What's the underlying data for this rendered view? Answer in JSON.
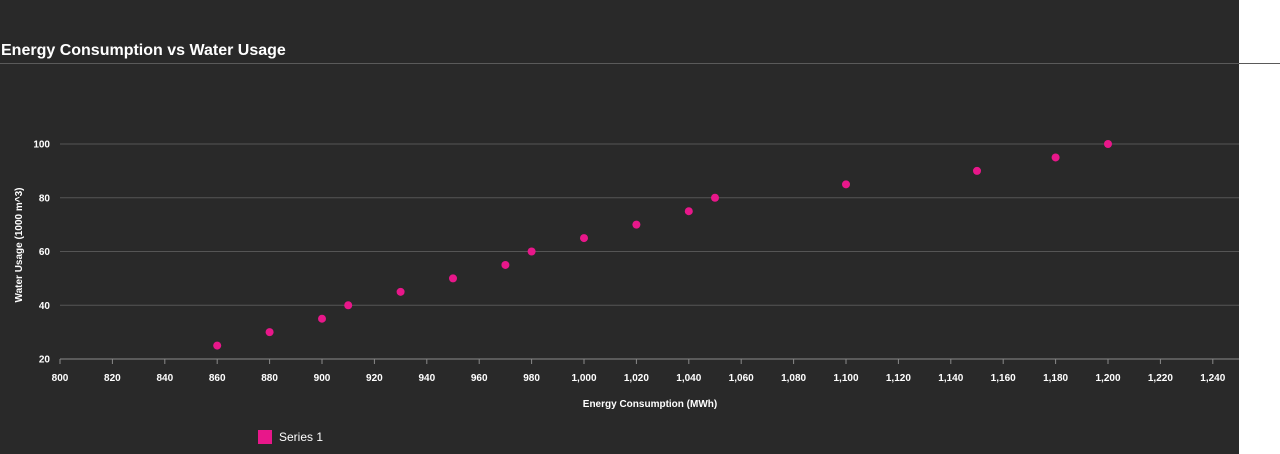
{
  "chart_data": {
    "type": "scatter",
    "title": "Energy Consumption vs Water Usage",
    "xlabel": "Energy Consumption (MWh)",
    "ylabel": "Water Usage (1000 m^3)",
    "xlim": [
      800,
      1250
    ],
    "ylim": [
      20,
      100
    ],
    "x_ticks": [
      800,
      820,
      840,
      860,
      880,
      900,
      920,
      940,
      960,
      980,
      1000,
      1020,
      1040,
      1060,
      1080,
      1100,
      1120,
      1140,
      1160,
      1180,
      1200,
      1220,
      1240
    ],
    "x_tick_labels": [
      "800",
      "820",
      "840",
      "860",
      "880",
      "900",
      "920",
      "940",
      "960",
      "980",
      "1,000",
      "1,020",
      "1,040",
      "1,060",
      "1,080",
      "1,100",
      "1,120",
      "1,140",
      "1,160",
      "1,180",
      "1,200",
      "1,220",
      "1,240"
    ],
    "y_ticks": [
      20,
      40,
      60,
      80,
      100
    ],
    "y_tick_labels": [
      "20",
      "40",
      "60",
      "80",
      "100"
    ],
    "grid": true,
    "legend_position": "bottom-left",
    "series": [
      {
        "name": "Series 1",
        "color": "#e8178a",
        "points": [
          {
            "x": 860,
            "y": 25
          },
          {
            "x": 880,
            "y": 30
          },
          {
            "x": 900,
            "y": 35
          },
          {
            "x": 910,
            "y": 40
          },
          {
            "x": 930,
            "y": 45
          },
          {
            "x": 950,
            "y": 50
          },
          {
            "x": 970,
            "y": 55
          },
          {
            "x": 980,
            "y": 60
          },
          {
            "x": 1000,
            "y": 65
          },
          {
            "x": 1020,
            "y": 70
          },
          {
            "x": 1040,
            "y": 75
          },
          {
            "x": 1050,
            "y": 80
          },
          {
            "x": 1100,
            "y": 85
          },
          {
            "x": 1150,
            "y": 90
          },
          {
            "x": 1180,
            "y": 95
          },
          {
            "x": 1200,
            "y": 100
          }
        ]
      }
    ]
  },
  "colors": {
    "background": "#292929",
    "gridline": "#555555",
    "axis": "#8a8a8a",
    "text": "#ffffff"
  }
}
